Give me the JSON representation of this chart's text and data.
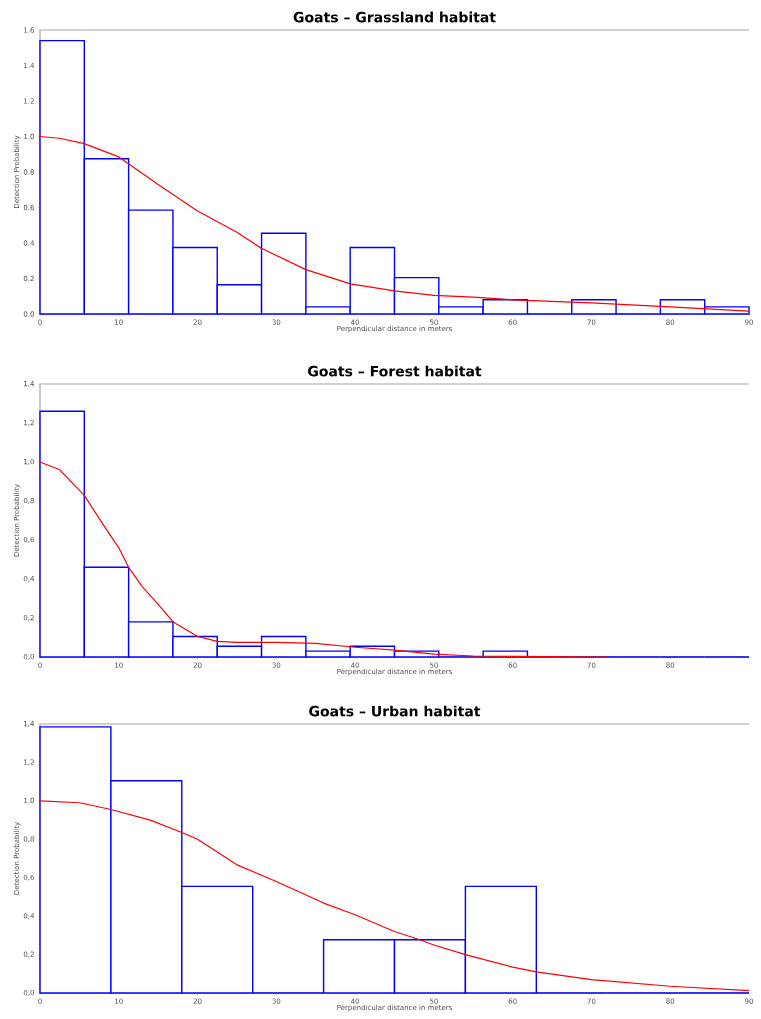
{
  "chart_data": [
    {
      "type": "histogram",
      "title": "Goats – Grassland habitat",
      "xlabel": "Perpendicular distance in meters",
      "ylabel": "Detection Probability",
      "bins": [
        0,
        5.625,
        11.25,
        16.875,
        22.5,
        28.125,
        33.75,
        39.375,
        45,
        50.625,
        56.25,
        61.875,
        67.5,
        73.125,
        78.75,
        84.375,
        90
      ],
      "values": [
        1.54,
        0.875,
        0.585,
        0.375,
        0.165,
        0.455,
        0.04,
        0.375,
        0.205,
        0.04,
        0.08,
        0,
        0.08,
        0,
        0.08,
        0.04
      ],
      "color": "#0000ff",
      "series": [
        {
          "type": "line",
          "color": "#ff0000",
          "x": [
            0,
            2.5,
            5.6,
            10,
            15,
            20,
            25,
            28.1,
            33.75,
            39.4,
            45,
            50,
            55,
            60,
            70,
            80,
            90
          ],
          "values": [
            1.0,
            0.99,
            0.96,
            0.885,
            0.73,
            0.58,
            0.46,
            0.37,
            0.25,
            0.17,
            0.13,
            0.105,
            0.095,
            0.08,
            0.063,
            0.04,
            0.016
          ]
        }
      ],
      "xlim": [
        0,
        90
      ],
      "ylim": [
        0,
        1.6
      ],
      "xticks": [
        0,
        10,
        20,
        30,
        40,
        50,
        60,
        70,
        80,
        90
      ],
      "yticks": [
        {
          "value": 0,
          "label": "0.0"
        },
        {
          "value": 0.2,
          "label": "0.2"
        },
        {
          "value": 0.4,
          "label": "0.4"
        },
        {
          "value": 0.6,
          "label": "0.6"
        },
        {
          "value": 0.8,
          "label": "0.8"
        },
        {
          "value": 1.0,
          "label": "1.0"
        },
        {
          "value": 1.2,
          "label": "1.2"
        },
        {
          "value": 1.4,
          "label": "1.4"
        },
        {
          "value": 1.6,
          "label": "1.6"
        }
      ]
    },
    {
      "type": "histogram",
      "title": "Goats – Forest habitat",
      "xlabel": "Perpendicular distance in meters",
      "ylabel": "Detection Probability",
      "bins": [
        0,
        5.625,
        11.25,
        16.875,
        22.5,
        28.125,
        33.75,
        39.375,
        45,
        50.625,
        56.25,
        61.875,
        67.5,
        73.125,
        78.75,
        84.375,
        90
      ],
      "values": [
        1.26,
        0.46,
        0.18,
        0.105,
        0.055,
        0.105,
        0.03,
        0.055,
        0.03,
        0,
        0.03,
        0,
        0,
        0,
        0,
        0
      ],
      "color": "#0000ff",
      "series": [
        {
          "type": "line",
          "color": "#ff0000",
          "x": [
            0,
            2.5,
            5.6,
            8,
            10,
            11.25,
            13,
            15,
            16.9,
            20,
            22.5,
            25,
            30,
            35,
            40,
            45,
            50,
            55,
            60,
            72
          ],
          "values": [
            1.0,
            0.96,
            0.83,
            0.68,
            0.56,
            0.46,
            0.36,
            0.27,
            0.18,
            0.105,
            0.08,
            0.075,
            0.075,
            0.07,
            0.05,
            0.035,
            0.015,
            0.005,
            0.003,
            0
          ]
        }
      ],
      "xlim": [
        0,
        90
      ],
      "ylim": [
        0,
        1.4
      ],
      "xticks": [
        0,
        10,
        20,
        30,
        40,
        50,
        60,
        70,
        80
      ],
      "yticks": [
        {
          "value": 0,
          "label": "0,0"
        },
        {
          "value": 0.2,
          "label": "0,2"
        },
        {
          "value": 0.4,
          "label": "0,4"
        },
        {
          "value": 0.6,
          "label": "0,6"
        },
        {
          "value": 0.8,
          "label": "0,8"
        },
        {
          "value": 1.0,
          "label": "1,0"
        },
        {
          "value": 1.2,
          "label": "1,2"
        },
        {
          "value": 1.4,
          "label": "1,4"
        }
      ]
    },
    {
      "type": "histogram",
      "title": "Goats – Urban habitat",
      "xlabel": "Perpendicular distance in meters",
      "ylabel": "Detection Probability",
      "bins": [
        0,
        9,
        18,
        27,
        36,
        45,
        54,
        63,
        72,
        81,
        90
      ],
      "values": [
        1.385,
        1.105,
        0.555,
        0,
        0.277,
        0.277,
        0.555,
        0,
        0,
        0
      ],
      "color": "#0000ff",
      "series": [
        {
          "type": "line",
          "color": "#ff0000",
          "x": [
            0,
            5,
            9,
            14,
            18,
            20,
            25,
            30,
            36,
            40,
            45,
            48,
            50,
            54,
            60,
            63,
            70,
            80,
            90
          ],
          "values": [
            1.0,
            0.99,
            0.955,
            0.9,
            0.835,
            0.8,
            0.667,
            0.58,
            0.468,
            0.407,
            0.32,
            0.28,
            0.25,
            0.2,
            0.135,
            0.11,
            0.07,
            0.035,
            0.012
          ]
        }
      ],
      "xlim": [
        0,
        90
      ],
      "ylim": [
        0,
        1.4
      ],
      "xticks": [
        0,
        10,
        20,
        30,
        40,
        50,
        60,
        70,
        80,
        90
      ],
      "yticks": [
        {
          "value": 0,
          "label": "0,0"
        },
        {
          "value": 0.2,
          "label": "0,2"
        },
        {
          "value": 0.4,
          "label": "0,4"
        },
        {
          "value": 0.6,
          "label": "0,6"
        },
        {
          "value": 0.8,
          "label": "0,8"
        },
        {
          "value": 1.0,
          "label": "1,0"
        },
        {
          "value": 1.2,
          "label": "1,2"
        },
        {
          "value": 1.4,
          "label": "1,4"
        }
      ]
    }
  ]
}
